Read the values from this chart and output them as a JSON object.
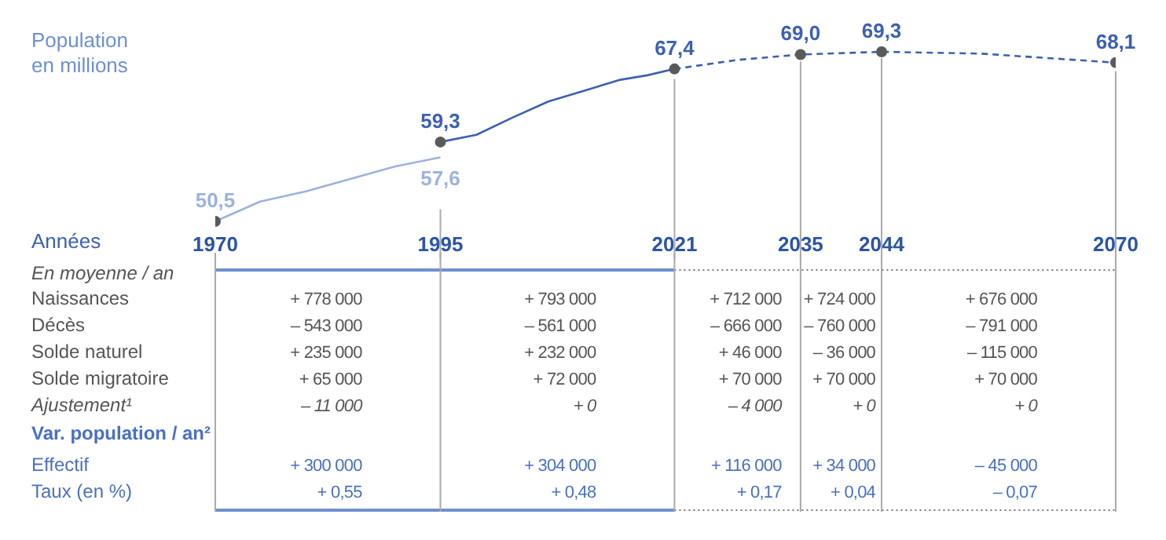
{
  "chart_data": {
    "type": "line",
    "xlabel": "Années",
    "ylabel": "Population\nen millions",
    "xlim": [
      1970,
      2070
    ],
    "xticks": [
      1970,
      1995,
      2021,
      2035,
      2044,
      2070
    ],
    "grid": "x",
    "series": [
      {
        "color": "#9cb2de",
        "x": [
          1970,
          1975,
          1980,
          1985,
          1990,
          1995
        ],
        "values": [
          50.5,
          52.7,
          53.8,
          55.2,
          56.6,
          57.6
        ],
        "value_labels": [
          "50,5",
          null,
          null,
          null,
          null,
          "57,6"
        ]
      },
      {
        "color": "#3c60b2",
        "x": [
          1995,
          1999,
          2003,
          2007,
          2011,
          2015,
          2018,
          2021
        ],
        "values": [
          59.3,
          60.1,
          62.0,
          63.8,
          65.0,
          66.2,
          66.7,
          67.4
        ],
        "value_labels": [
          "59,3",
          null,
          null,
          null,
          null,
          null,
          null,
          "67,4"
        ]
      },
      {
        "color": "#3c60b2",
        "line_style": "dashed",
        "x": [
          2021,
          2028,
          2035,
          2044,
          2055,
          2070
        ],
        "values": [
          67.4,
          68.4,
          69.0,
          69.3,
          69.1,
          68.1
        ],
        "value_labels": [
          null,
          null,
          "69,0",
          "69,3",
          null,
          "68,1"
        ]
      },
      {
        "type": "scatter",
        "color": "#5a5a5a",
        "x": [
          1970,
          1995,
          2021,
          2035,
          2044,
          2070
        ],
        "values": [
          50.5,
          59.3,
          67.4,
          69.0,
          69.3,
          68.1
        ]
      }
    ],
    "annotations": [
      "En moyenne / an",
      "Naissances",
      "+ 778 000",
      "+ 793 000",
      "+ 712 000",
      "+ 724 000",
      "+ 676 000",
      "Décès",
      "– 543 000",
      "– 561 000",
      "– 666 000",
      "– 760 000",
      "– 791 000",
      "Solde naturel",
      "+ 235 000",
      "+ 232 000",
      "+ 46 000",
      "– 36 000",
      "– 115 000",
      "Solde migratoire",
      "+ 65 000",
      "+ 72 000",
      "+ 70 000",
      "+ 70 000",
      "+ 70 000",
      "Ajustement¹",
      "– 11 000",
      "+ 0",
      "– 4 000",
      "+ 0",
      "+ 0",
      "Var. population / an²",
      "Effectif",
      "+ 300 000",
      "+ 304 000",
      "+ 116 000",
      "+ 34 000",
      "– 45 000",
      "Taux (en %)",
      "+ 0,55",
      "+ 0,48",
      "+ 0,17",
      "+ 0,04",
      "– 0,07"
    ]
  }
}
